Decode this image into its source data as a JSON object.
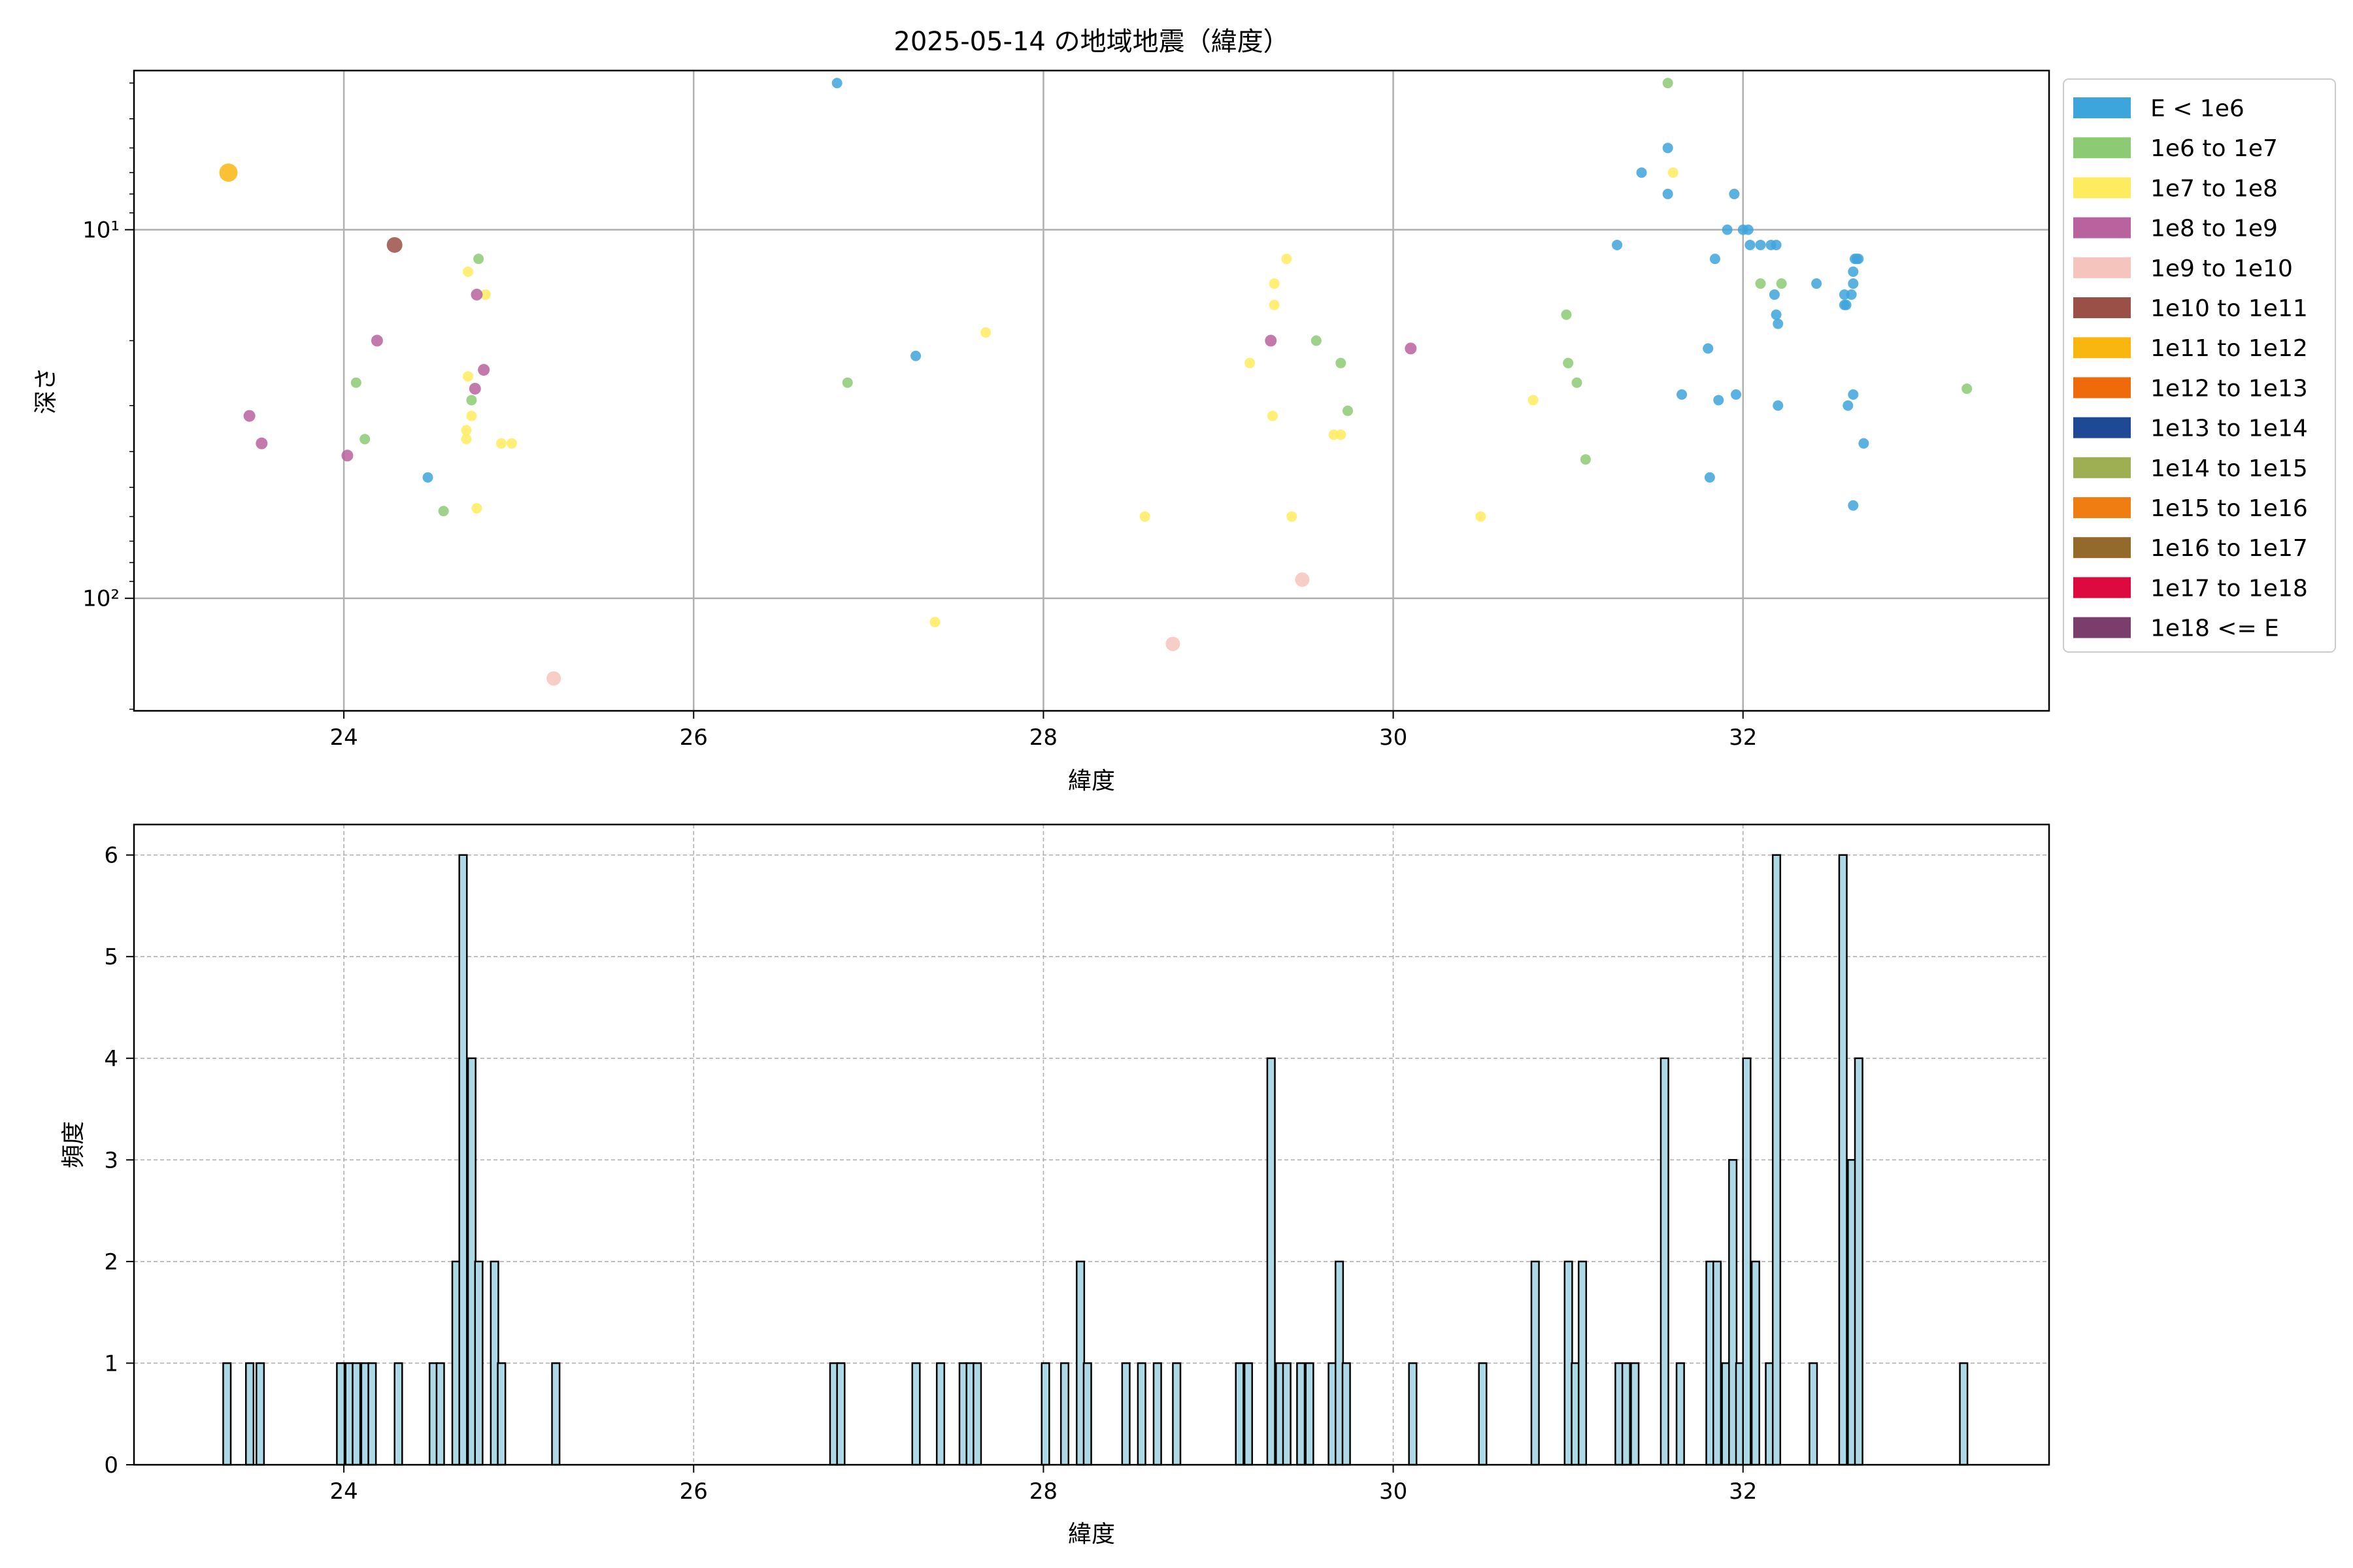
{
  "chart_data": [
    {
      "type": "scatter",
      "title": "2025-05-14 の地域地震（緯度）",
      "xlabel": "緯度",
      "ylabel": "深さ",
      "x_ticks": [
        "24",
        "26",
        "28",
        "30",
        "32"
      ],
      "xlim": [
        22.8,
        33.75
      ],
      "y_scale": "log",
      "y_inverted": true,
      "ylim": [
        3.7,
        202
      ],
      "y_ticks": [
        "10¹",
        "10²"
      ],
      "grid": true,
      "legend_position": "right, outside plot area",
      "legend": [
        {
          "label": "E < 1e6",
          "color": "#3ea4dc"
        },
        {
          "label": "1e6 to 1e7",
          "color": "#8dca74"
        },
        {
          "label": "1e7 to 1e8",
          "color": "#ffec5e"
        },
        {
          "label": "1e8 to 1e9",
          "color": "#b8629e"
        },
        {
          "label": "1e9 to 1e10",
          "color": "#f5c4bd"
        },
        {
          "label": "1e10 to 1e11",
          "color": "#9a5046"
        },
        {
          "label": "1e11 to 1e12",
          "color": "#f8b60f"
        },
        {
          "label": "1e12 to 1e13",
          "color": "#ee6a0b"
        },
        {
          "label": "1e13 to 1e14",
          "color": "#1e4a95"
        },
        {
          "label": "1e14 to 1e15",
          "color": "#9daf52"
        },
        {
          "label": "1e15 to 1e16",
          "color": "#ef7d11"
        },
        {
          "label": "1e16 to 1e17",
          "color": "#94692c"
        },
        {
          "label": "1e17 to 1e18",
          "color": "#dc0a3f"
        },
        {
          "label": "1e18 <= E",
          "color": "#7a3d6c"
        }
      ],
      "series": [
        {
          "name": "E < 1e6",
          "points": [
            [
              24.48,
              47
            ],
            [
              26.82,
              4
            ],
            [
              27.27,
              22
            ],
            [
              31.28,
              11
            ],
            [
              31.42,
              7
            ],
            [
              31.57,
              6
            ],
            [
              31.57,
              8
            ],
            [
              31.65,
              28
            ],
            [
              31.8,
              21
            ],
            [
              31.81,
              47
            ],
            [
              31.84,
              12
            ],
            [
              31.86,
              29
            ],
            [
              31.91,
              10
            ],
            [
              31.95,
              8
            ],
            [
              31.96,
              28
            ],
            [
              32.0,
              10
            ],
            [
              32.03,
              10
            ],
            [
              32.04,
              11
            ],
            [
              32.1,
              11
            ],
            [
              32.16,
              11
            ],
            [
              32.18,
              15
            ],
            [
              32.19,
              11
            ],
            [
              32.19,
              17
            ],
            [
              32.2,
              18
            ],
            [
              32.2,
              30
            ],
            [
              32.42,
              14
            ],
            [
              32.58,
              15
            ],
            [
              32.58,
              16
            ],
            [
              32.59,
              16
            ],
            [
              32.6,
              30
            ],
            [
              32.62,
              15
            ],
            [
              32.63,
              14
            ],
            [
              32.63,
              13
            ],
            [
              32.63,
              28
            ],
            [
              32.63,
              56
            ],
            [
              32.64,
              12
            ],
            [
              32.65,
              12
            ],
            [
              32.66,
              12
            ],
            [
              32.69,
              38
            ]
          ]
        },
        {
          "name": "1e6 to 1e7",
          "points": [
            [
              24.07,
              26
            ],
            [
              24.12,
              37
            ],
            [
              24.57,
              58
            ],
            [
              24.73,
              29
            ],
            [
              24.77,
              12
            ],
            [
              26.88,
              26
            ],
            [
              29.56,
              20
            ],
            [
              29.7,
              23
            ],
            [
              29.74,
              31
            ],
            [
              30.99,
              17
            ],
            [
              31.0,
              23
            ],
            [
              31.05,
              26
            ],
            [
              31.1,
              42
            ],
            [
              31.57,
              4
            ],
            [
              32.1,
              14
            ],
            [
              32.22,
              14
            ],
            [
              33.28,
              27
            ]
          ]
        },
        {
          "name": "1e7 to 1e8",
          "points": [
            [
              24.7,
              37
            ],
            [
              24.7,
              35
            ],
            [
              24.71,
              13
            ],
            [
              24.71,
              25
            ],
            [
              24.73,
              32
            ],
            [
              24.76,
              57
            ],
            [
              24.81,
              15
            ],
            [
              24.9,
              38
            ],
            [
              24.96,
              38
            ],
            [
              27.38,
              116
            ],
            [
              27.67,
              19
            ],
            [
              28.58,
              60
            ],
            [
              29.18,
              23
            ],
            [
              29.31,
              32
            ],
            [
              29.32,
              16
            ],
            [
              29.32,
              14
            ],
            [
              29.39,
              12
            ],
            [
              29.42,
              60
            ],
            [
              29.66,
              36
            ],
            [
              29.7,
              36
            ],
            [
              30.5,
              60
            ],
            [
              30.8,
              29
            ],
            [
              31.6,
              7
            ]
          ]
        },
        {
          "name": "1e8 to 1e9",
          "points": [
            [
              23.46,
              32
            ],
            [
              23.53,
              38
            ],
            [
              24.02,
              41
            ],
            [
              24.19,
              20
            ],
            [
              24.75,
              27
            ],
            [
              24.76,
              15
            ],
            [
              24.8,
              24
            ],
            [
              29.3,
              20
            ],
            [
              30.1,
              21
            ]
          ]
        },
        {
          "name": "1e9 to 1e10",
          "points": [
            [
              25.2,
              165
            ],
            [
              28.74,
              133
            ],
            [
              29.48,
              89
            ]
          ]
        },
        {
          "name": "1e10 to 1e11",
          "points": [
            [
              24.29,
              11
            ]
          ]
        },
        {
          "name": "1e11 to 1e12",
          "points": [
            [
              23.34,
              7
            ]
          ]
        }
      ]
    },
    {
      "type": "bar",
      "title": "",
      "xlabel": "緯度",
      "ylabel": "頻度",
      "x_ticks": [
        "24",
        "26",
        "28",
        "30",
        "32"
      ],
      "y_ticks": [
        "0",
        "1",
        "2",
        "3",
        "4",
        "5",
        "6"
      ],
      "xlim": [
        22.8,
        33.75
      ],
      "ylim": [
        0,
        6.3
      ],
      "grid": true,
      "bar_color": "#add8e6",
      "bin_width": 0.0433,
      "bins": [
        [
          23.31,
          1
        ],
        [
          23.44,
          1
        ],
        [
          23.5,
          1
        ],
        [
          23.96,
          1
        ],
        [
          24.01,
          1
        ],
        [
          24.05,
          1
        ],
        [
          24.1,
          1
        ],
        [
          24.14,
          1
        ],
        [
          24.29,
          1
        ],
        [
          24.49,
          1
        ],
        [
          24.53,
          1
        ],
        [
          24.62,
          2
        ],
        [
          24.66,
          6
        ],
        [
          24.71,
          4
        ],
        [
          24.75,
          2
        ],
        [
          24.84,
          2
        ],
        [
          24.88,
          1
        ],
        [
          25.19,
          1
        ],
        [
          26.78,
          1
        ],
        [
          26.82,
          1
        ],
        [
          27.25,
          1
        ],
        [
          27.39,
          1
        ],
        [
          27.52,
          1
        ],
        [
          27.56,
          1
        ],
        [
          27.6,
          1
        ],
        [
          27.99,
          1
        ],
        [
          28.1,
          1
        ],
        [
          28.19,
          2
        ],
        [
          28.23,
          1
        ],
        [
          28.45,
          1
        ],
        [
          28.54,
          1
        ],
        [
          28.63,
          1
        ],
        [
          28.74,
          1
        ],
        [
          29.1,
          1
        ],
        [
          29.15,
          1
        ],
        [
          29.28,
          4
        ],
        [
          29.33,
          1
        ],
        [
          29.37,
          1
        ],
        [
          29.45,
          1
        ],
        [
          29.5,
          1
        ],
        [
          29.63,
          1
        ],
        [
          29.67,
          2
        ],
        [
          29.71,
          1
        ],
        [
          30.09,
          1
        ],
        [
          30.49,
          1
        ],
        [
          30.79,
          2
        ],
        [
          30.98,
          2
        ],
        [
          31.02,
          1
        ],
        [
          31.06,
          2
        ],
        [
          31.27,
          1
        ],
        [
          31.31,
          1
        ],
        [
          31.36,
          1
        ],
        [
          31.53,
          4
        ],
        [
          31.62,
          1
        ],
        [
          31.79,
          2
        ],
        [
          31.83,
          2
        ],
        [
          31.88,
          1
        ],
        [
          31.92,
          3
        ],
        [
          31.96,
          1
        ],
        [
          32.0,
          4
        ],
        [
          32.05,
          2
        ],
        [
          32.13,
          1
        ],
        [
          32.17,
          6
        ],
        [
          32.38,
          1
        ],
        [
          32.55,
          6
        ],
        [
          32.6,
          3
        ],
        [
          32.64,
          4
        ],
        [
          33.24,
          1
        ]
      ]
    }
  ]
}
